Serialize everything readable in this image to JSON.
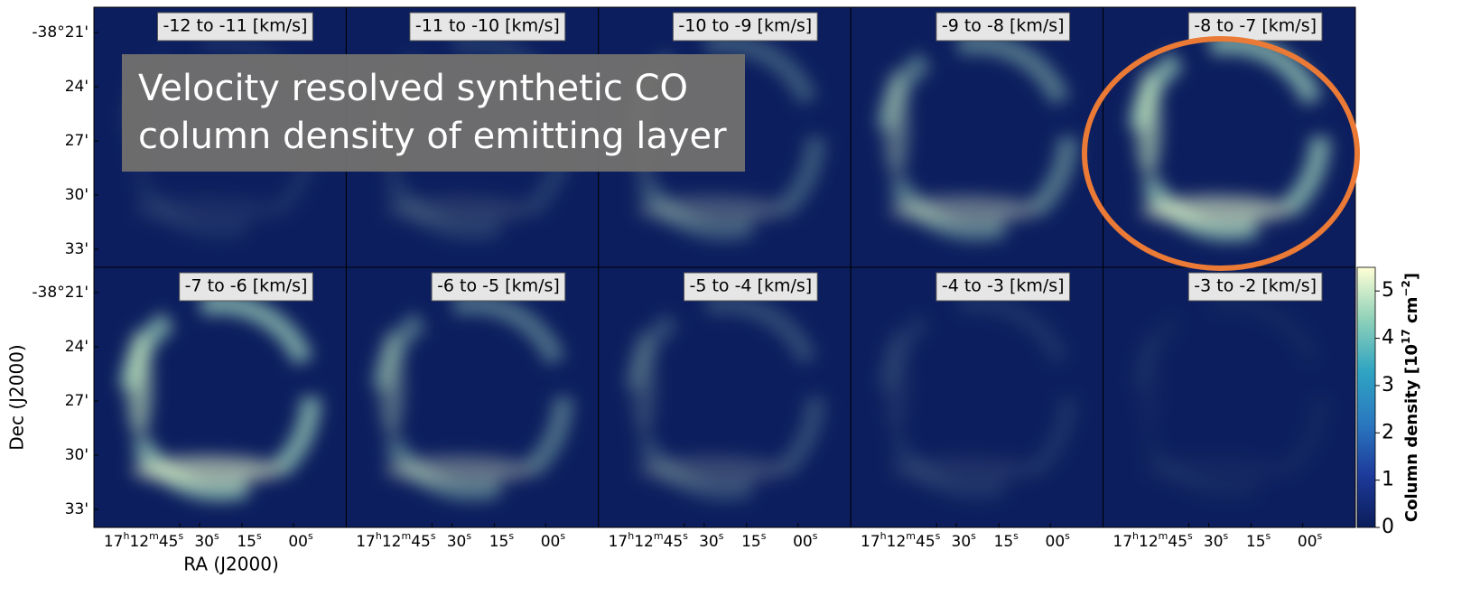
{
  "title_box": {
    "lines": [
      "Velocity resolved synthetic CO",
      "column density of emitting layer"
    ]
  },
  "panels": [
    "-12 to -11 [km/s]",
    "-11 to -10 [km/s]",
    "-10 to -9 [km/s]",
    "-9 to -8 [km/s]",
    "-8 to -7 [km/s]",
    "-7 to -6 [km/s]",
    "-6 to -5 [km/s]",
    "-5 to -4 [km/s]",
    "-4 to -3 [km/s]",
    "-3 to -2 [km/s]"
  ],
  "dec_label": "Dec (J2000)",
  "ra_label": "RA (J2000)",
  "dec_ticks": [
    "-38°21'",
    "24'",
    "27'",
    "30'",
    "33'"
  ],
  "ra_ticks": [
    [
      "17",
      "h",
      "12",
      "m",
      "45",
      "s"
    ],
    [
      "30",
      "s"
    ],
    [
      "15",
      "s"
    ],
    [
      "00",
      "s"
    ]
  ],
  "colorbar": {
    "label": [
      "Column density [10",
      "17",
      " cm",
      "−2",
      "]"
    ],
    "lim": [
      0,
      5.5
    ],
    "ticks": [
      0,
      1,
      2,
      3,
      4,
      5
    ]
  }
}
